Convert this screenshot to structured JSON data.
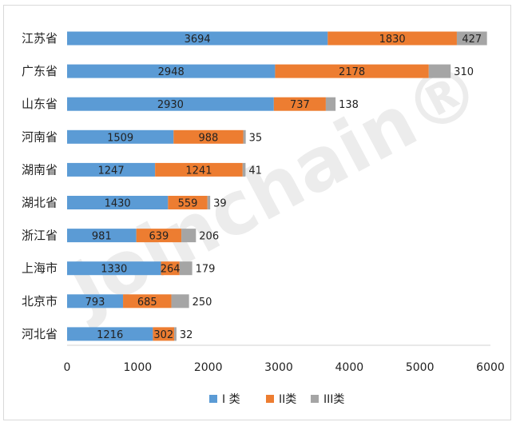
{
  "chart_data": {
    "type": "bar",
    "orientation": "horizontal",
    "stacked": true,
    "categories": [
      "江苏省",
      "广东省",
      "山东省",
      "河南省",
      "湖南省",
      "湖北省",
      "浙江省",
      "上海市",
      "北京市",
      "河北省"
    ],
    "series": [
      {
        "name": "I 类",
        "color": "#5b9bd5",
        "values": [
          3694,
          2948,
          2930,
          1509,
          1247,
          1430,
          981,
          1330,
          793,
          1216
        ]
      },
      {
        "name": "II类",
        "color": "#ed7d31",
        "values": [
          1830,
          2178,
          737,
          988,
          1241,
          559,
          639,
          264,
          685,
          302
        ]
      },
      {
        "name": "III类",
        "color": "#a5a5a5",
        "values": [
          427,
          310,
          138,
          35,
          41,
          39,
          206,
          179,
          250,
          32
        ]
      }
    ],
    "xlim": [
      0,
      6000
    ],
    "xticks": [
      "0",
      "1000",
      "2000",
      "3000",
      "4000",
      "5000",
      "6000"
    ],
    "legend_position": "bottom",
    "grid": false,
    "watermark": "Joinchain®"
  }
}
